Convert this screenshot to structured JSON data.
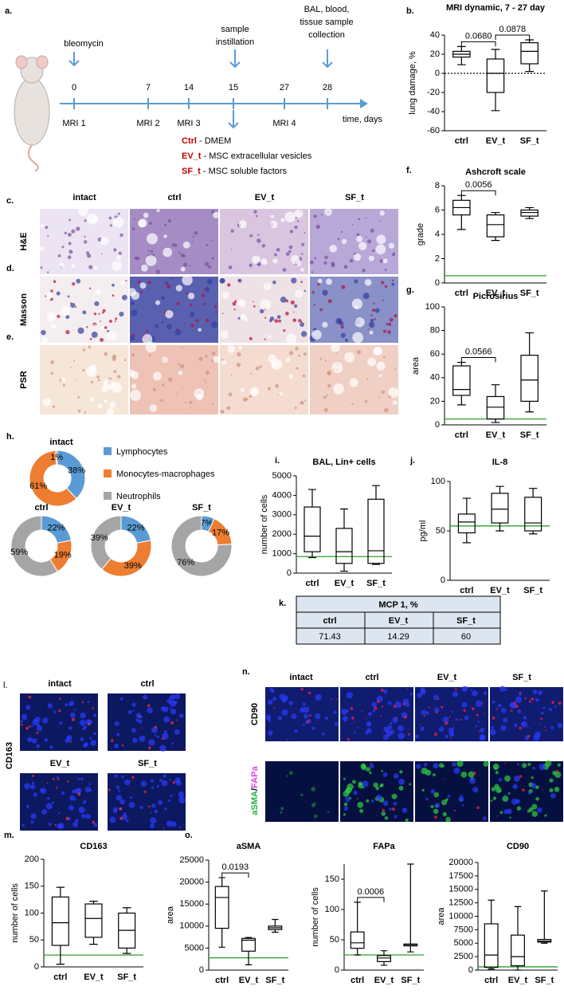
{
  "timeline": {
    "panel": "a.",
    "start_event": "bleomycin",
    "mid_event": [
      "sample",
      "instillation"
    ],
    "end_event": [
      "BAL, blood,",
      "tissue sample",
      "collection"
    ],
    "days": [
      0,
      7,
      14,
      15,
      27,
      28
    ],
    "mri": [
      "MRI 1",
      "MRI 2",
      "MRI 3",
      "MRI 4"
    ],
    "axis_label": "time, days",
    "treatments": [
      {
        "code": "Ctrl",
        "desc": " - DMEM"
      },
      {
        "code": "EV_t",
        "desc": " - MSC extracellular vesicles"
      },
      {
        "code": "SF_t",
        "desc": " - MSC soluble factors"
      }
    ]
  },
  "histology": {
    "panels": [
      "c.",
      "d.",
      "e."
    ],
    "stains": [
      "H&E",
      "Masson",
      "PSR"
    ],
    "groups": [
      "intact",
      "ctrl",
      "EV_t",
      "SF_t"
    ]
  },
  "immunofluorescence_l": {
    "panel": "l.",
    "marker": "CD163",
    "groups": [
      "intact",
      "ctrl",
      "EV_t",
      "SF_t"
    ]
  },
  "immunofluorescence_n": {
    "panel": "n.",
    "marker1": "CD90",
    "marker2": [
      "aSMA",
      "/",
      "FAPa"
    ],
    "groups": [
      "intact",
      "ctrl",
      "EV_t",
      "SF_t"
    ]
  },
  "table": {
    "panel": "k.",
    "title": "MCP 1, %",
    "header": [
      "ctrl",
      "EV_t",
      "SF_t"
    ],
    "rows": [
      [
        71.43,
        14.29,
        60
      ]
    ]
  },
  "chart_data": [
    {
      "type": "box",
      "panel": "b.",
      "title": "MRI dynamic, 7 - 27 day",
      "ylabel": "lung damage, %",
      "categories": [
        "ctrl",
        "EV_t",
        "SF_t"
      ],
      "boxes": [
        {
          "min": 9,
          "q1": 17,
          "median": 20,
          "q3": 23,
          "max": 28
        },
        {
          "min": -39,
          "q1": -20,
          "median": 0,
          "q3": 15,
          "max": 25
        },
        {
          "min": 2,
          "q1": 10,
          "median": 23,
          "q3": 32,
          "max": 35
        }
      ],
      "ylim": [
        -60,
        40
      ],
      "yticks": [
        -60,
        -40,
        -20,
        0,
        20,
        40
      ],
      "reference_line": {
        "value": 0,
        "style": "dotted",
        "color": "#000000"
      },
      "comparisons": [
        {
          "between": [
            "ctrl",
            "EV_t"
          ],
          "label": "0.0680"
        },
        {
          "between": [
            "EV_t",
            "SF_t"
          ],
          "label": "0.0878"
        }
      ]
    },
    {
      "type": "box",
      "panel": "f.",
      "title": "Ashcroft scale",
      "ylabel": "grade",
      "categories": [
        "ctrl",
        "EV_t",
        "SF_t"
      ],
      "boxes": [
        {
          "min": 4.4,
          "q1": 5.6,
          "median": 6.2,
          "q3": 6.8,
          "max": 7.2
        },
        {
          "min": 3.5,
          "q1": 3.8,
          "median": 4.8,
          "q3": 5.6,
          "max": 5.8
        },
        {
          "min": 5.3,
          "q1": 5.5,
          "median": 5.8,
          "q3": 6.0,
          "max": 6.2
        }
      ],
      "ylim": [
        0,
        8
      ],
      "yticks": [
        0,
        2,
        4,
        6,
        8
      ],
      "reference_line": {
        "value": 0.6,
        "style": "solid",
        "color": "#2ca02c"
      },
      "comparisons": [
        {
          "between": [
            "ctrl",
            "EV_t"
          ],
          "label": "0.0056"
        }
      ]
    },
    {
      "type": "box",
      "panel": "g.",
      "title": "Picrosirius",
      "ylabel": "area",
      "categories": [
        "ctrl",
        "EV_t",
        "SF_t"
      ],
      "boxes": [
        {
          "min": 17,
          "q1": 25,
          "median": 30,
          "q3": 50,
          "max": 53
        },
        {
          "min": 2,
          "q1": 5,
          "median": 15,
          "q3": 24,
          "max": 34
        },
        {
          "min": 11,
          "q1": 20,
          "median": 38,
          "q3": 59,
          "max": 78
        }
      ],
      "ylim": [
        0,
        100
      ],
      "yticks": [
        0,
        20,
        40,
        60,
        80,
        100
      ],
      "reference_line": {
        "value": 5,
        "style": "solid",
        "color": "#2ca02c"
      },
      "comparisons": [
        {
          "between": [
            "ctrl",
            "EV_t"
          ],
          "label": "0.0566"
        }
      ]
    },
    {
      "type": "donut",
      "panel": "h.",
      "categories": [
        "Lymphocytes",
        "Monocytes-macrophages",
        "Neutrophils"
      ],
      "colors": [
        "#5b9bd5",
        "#ed7d31",
        "#a5a5a5"
      ],
      "series": [
        {
          "name": "intact",
          "values": [
            38,
            61,
            1
          ],
          "value_labels": [
            "38%",
            "61%",
            "1%"
          ]
        },
        {
          "name": "ctrl",
          "values": [
            22,
            19,
            59
          ],
          "value_labels": [
            "22%",
            "19%",
            "59%"
          ]
        },
        {
          "name": "EV_t",
          "values": [
            22,
            39,
            39
          ],
          "value_labels": [
            "22%",
            "39%",
            "39%"
          ]
        },
        {
          "name": "SF_t",
          "values": [
            7,
            17,
            76
          ],
          "value_labels": [
            "7%",
            "17%",
            "76%"
          ]
        }
      ]
    },
    {
      "type": "box",
      "panel": "i.",
      "title": "BAL, Lin+ cells",
      "ylabel": "number of cells",
      "categories": [
        "ctrl",
        "EV_t",
        "SF_t"
      ],
      "boxes": [
        {
          "min": 800,
          "q1": 1100,
          "median": 1900,
          "q3": 3400,
          "max": 4300
        },
        {
          "min": 100,
          "q1": 500,
          "median": 1100,
          "q3": 2300,
          "max": 3300
        },
        {
          "min": 450,
          "q1": 500,
          "median": 1150,
          "q3": 3800,
          "max": 4500
        }
      ],
      "ylim": [
        0,
        5000
      ],
      "yticks": [
        0,
        1000,
        2000,
        3000,
        4000,
        5000
      ],
      "reference_line": {
        "value": 850,
        "style": "solid",
        "color": "#2ca02c"
      }
    },
    {
      "type": "box",
      "panel": "j.",
      "title": "IL-8",
      "ylabel": "pg/ml",
      "categories": [
        "ctrl",
        "EV_t",
        "SF_t"
      ],
      "boxes": [
        {
          "min": 38,
          "q1": 48,
          "median": 59,
          "q3": 67,
          "max": 83
        },
        {
          "min": 50,
          "q1": 58,
          "median": 72,
          "q3": 88,
          "max": 95
        },
        {
          "min": 47,
          "q1": 50,
          "median": 58,
          "q3": 84,
          "max": 93
        }
      ],
      "ylim": [
        0,
        100
      ],
      "yticks": [
        0,
        50,
        100
      ],
      "reference_line": {
        "value": 55,
        "style": "solid",
        "color": "#2ca02c"
      }
    },
    {
      "type": "box",
      "panel": "m.",
      "title": "CD163",
      "ylabel": "number of cells",
      "categories": [
        "ctrl",
        "EV_t",
        "SF_t"
      ],
      "boxes": [
        {
          "min": 5,
          "q1": 40,
          "median": 82,
          "q3": 130,
          "max": 148
        },
        {
          "min": 42,
          "q1": 55,
          "median": 90,
          "q3": 117,
          "max": 122
        },
        {
          "min": 25,
          "q1": 35,
          "median": 68,
          "q3": 100,
          "max": 110
        }
      ],
      "ylim": [
        0,
        200
      ],
      "yticks": [
        0,
        50,
        100,
        150,
        200
      ],
      "reference_line": {
        "value": 22,
        "style": "solid",
        "color": "#2ca02c"
      }
    },
    {
      "type": "box",
      "panel": "o.",
      "title": "aSMA",
      "ylabel": "area",
      "categories": [
        "ctrl",
        "EV_t",
        "SF_t"
      ],
      "boxes": [
        {
          "min": 5200,
          "q1": 9500,
          "median": 16500,
          "q3": 19000,
          "max": 21000
        },
        {
          "min": 1200,
          "q1": 4300,
          "median": 6800,
          "q3": 7200,
          "max": 7400
        },
        {
          "min": 8600,
          "q1": 9200,
          "median": 9600,
          "q3": 10000,
          "max": 11500
        }
      ],
      "ylim": [
        0,
        25000
      ],
      "yticks": [
        0,
        5000,
        10000,
        15000,
        20000,
        25000
      ],
      "reference_line": {
        "value": 2800,
        "style": "solid",
        "color": "#2ca02c"
      },
      "comparisons": [
        {
          "between": [
            "ctrl",
            "EV_t"
          ],
          "label": "0.0193"
        }
      ]
    },
    {
      "type": "box",
      "title": "FAPa",
      "ylabel": "number of cells",
      "categories": [
        "ctrl",
        "EV_t",
        "SF_t"
      ],
      "boxes": [
        {
          "min": 25,
          "q1": 36,
          "median": 45,
          "q3": 63,
          "max": 112
        },
        {
          "min": 8,
          "q1": 14,
          "median": 20,
          "q3": 24,
          "max": 32
        },
        {
          "min": 30,
          "q1": 40,
          "median": 42,
          "q3": 43,
          "max": 175
        }
      ],
      "ylim": [
        0,
        175
      ],
      "yticks": [
        0,
        50,
        100,
        150
      ],
      "reference_line": {
        "value": 25,
        "style": "solid",
        "color": "#2ca02c"
      },
      "comparisons": [
        {
          "between": [
            "ctrl",
            "EV_t"
          ],
          "label": "0.0006"
        }
      ]
    },
    {
      "type": "box",
      "title": "CD90",
      "ylabel": "area",
      "categories": [
        "ctrl",
        "EV_t",
        "SF_t"
      ],
      "boxes": [
        {
          "min": 200,
          "q1": 500,
          "median": 2800,
          "q3": 8600,
          "max": 13000
        },
        {
          "min": 0,
          "q1": 800,
          "median": 2500,
          "q3": 6500,
          "max": 11800
        },
        {
          "min": 5000,
          "q1": 5200,
          "median": 5400,
          "q3": 5700,
          "max": 14700
        }
      ],
      "ylim": [
        0,
        20000
      ],
      "yticks": [
        0,
        2500,
        5000,
        7500,
        10000,
        12500,
        15000,
        17500,
        20000
      ],
      "reference_line": {
        "value": 600,
        "style": "solid",
        "color": "#2ca02c"
      }
    }
  ]
}
